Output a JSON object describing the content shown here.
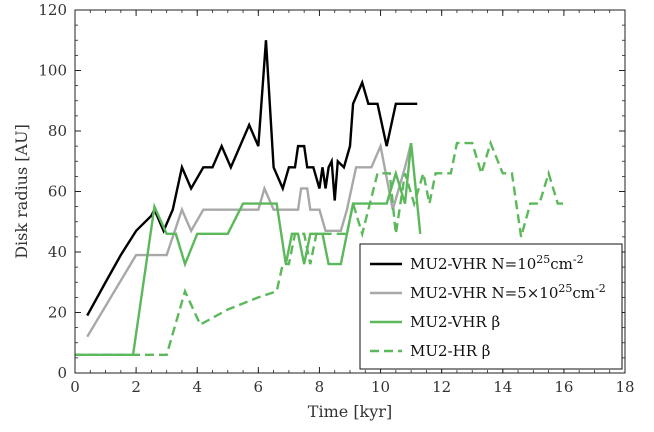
{
  "chart_data": {
    "type": "line",
    "title": "",
    "xlabel": "Time [kyr]",
    "ylabel": "Disk radius [AU]",
    "xlim": [
      0,
      18
    ],
    "ylim": [
      0,
      120
    ],
    "xticks": [
      0,
      2,
      4,
      6,
      8,
      10,
      12,
      14,
      16,
      18
    ],
    "yticks": [
      0,
      20,
      40,
      60,
      80,
      100,
      120
    ],
    "minor_xtick_step": 0.5,
    "minor_ytick_step": 5,
    "grid": false,
    "legend_position": "lower-right",
    "series": [
      {
        "name_parts": [
          "MU2-VHR N=10",
          "25",
          "cm",
          "-2"
        ],
        "color": "#000000",
        "dash": "solid",
        "points": [
          [
            0.4,
            19
          ],
          [
            1.0,
            30
          ],
          [
            1.5,
            39
          ],
          [
            2.0,
            47
          ],
          [
            2.5,
            52
          ],
          [
            2.6,
            54
          ],
          [
            2.9,
            47
          ],
          [
            3.2,
            54
          ],
          [
            3.5,
            68
          ],
          [
            3.8,
            61
          ],
          [
            4.2,
            68
          ],
          [
            4.5,
            68
          ],
          [
            4.8,
            75
          ],
          [
            5.1,
            68
          ],
          [
            5.7,
            82
          ],
          [
            6.0,
            75
          ],
          [
            6.25,
            110
          ],
          [
            6.5,
            68
          ],
          [
            6.8,
            61
          ],
          [
            7.0,
            68
          ],
          [
            7.2,
            68
          ],
          [
            7.3,
            75
          ],
          [
            7.5,
            75
          ],
          [
            7.6,
            68
          ],
          [
            7.8,
            68
          ],
          [
            8.0,
            61
          ],
          [
            8.1,
            68
          ],
          [
            8.2,
            61
          ],
          [
            8.3,
            68
          ],
          [
            8.4,
            70
          ],
          [
            8.5,
            57
          ],
          [
            8.6,
            70
          ],
          [
            8.8,
            68
          ],
          [
            9.0,
            75
          ],
          [
            9.1,
            89
          ],
          [
            9.4,
            96
          ],
          [
            9.6,
            89
          ],
          [
            9.9,
            89
          ],
          [
            10.2,
            75
          ],
          [
            10.5,
            89
          ],
          [
            11.2,
            89
          ]
        ]
      },
      {
        "name_parts": [
          "MU2-VHR N=5×10",
          "25",
          "cm",
          "-2"
        ],
        "color": "#a8a8a8",
        "dash": "solid",
        "points": [
          [
            0.4,
            12
          ],
          [
            2.0,
            39
          ],
          [
            3.0,
            39
          ],
          [
            3.5,
            54
          ],
          [
            3.8,
            47
          ],
          [
            4.2,
            54
          ],
          [
            5.5,
            54
          ],
          [
            6.0,
            54
          ],
          [
            6.2,
            61
          ],
          [
            6.5,
            54
          ],
          [
            7.0,
            54
          ],
          [
            7.3,
            54
          ],
          [
            7.4,
            61
          ],
          [
            7.6,
            61
          ],
          [
            7.7,
            54
          ],
          [
            8.0,
            54
          ],
          [
            8.2,
            47
          ],
          [
            8.7,
            47
          ],
          [
            8.9,
            54
          ],
          [
            9.2,
            68
          ],
          [
            9.7,
            68
          ],
          [
            10.0,
            75
          ],
          [
            10.4,
            54
          ],
          [
            10.8,
            68
          ],
          [
            11.0,
            76
          ]
        ]
      },
      {
        "name_parts": [
          "MU2-VHR β"
        ],
        "color": "#5bb85b",
        "dash": "solid",
        "points": [
          [
            0,
            6
          ],
          [
            1.9,
            6
          ],
          [
            2.6,
            55
          ],
          [
            3.0,
            46
          ],
          [
            3.3,
            46
          ],
          [
            3.6,
            36
          ],
          [
            4.0,
            46
          ],
          [
            5.0,
            46
          ],
          [
            5.5,
            56
          ],
          [
            6.6,
            56
          ],
          [
            6.9,
            36
          ],
          [
            7.1,
            46
          ],
          [
            7.3,
            46
          ],
          [
            7.5,
            36
          ],
          [
            7.7,
            46
          ],
          [
            8.1,
            46
          ],
          [
            8.3,
            36
          ],
          [
            8.7,
            36
          ],
          [
            9.1,
            56
          ],
          [
            10.0,
            56
          ],
          [
            10.2,
            56
          ],
          [
            10.5,
            66
          ],
          [
            10.8,
            56
          ],
          [
            11.0,
            76
          ],
          [
            11.3,
            46
          ]
        ]
      },
      {
        "name_parts": [
          "MU2-HR β"
        ],
        "color": "#5bb85b",
        "dash": "dashed",
        "points": [
          [
            0,
            6
          ],
          [
            3.0,
            6
          ],
          [
            3.6,
            27
          ],
          [
            4.1,
            16
          ],
          [
            5.0,
            21
          ],
          [
            6.0,
            25
          ],
          [
            6.6,
            27
          ],
          [
            6.8,
            36
          ],
          [
            7.0,
            36
          ],
          [
            7.2,
            46
          ],
          [
            7.5,
            46
          ],
          [
            7.7,
            36
          ],
          [
            7.9,
            46
          ],
          [
            8.6,
            46
          ],
          [
            8.8,
            46
          ],
          [
            8.9,
            46
          ],
          [
            9.1,
            56
          ],
          [
            9.4,
            46
          ],
          [
            9.9,
            66
          ],
          [
            10.3,
            66
          ],
          [
            10.5,
            46
          ],
          [
            10.8,
            66
          ],
          [
            11.1,
            56
          ],
          [
            11.4,
            66
          ],
          [
            11.6,
            56
          ],
          [
            11.8,
            66
          ],
          [
            12.0,
            66
          ],
          [
            12.3,
            66
          ],
          [
            12.5,
            76
          ],
          [
            13.0,
            76
          ],
          [
            13.3,
            66
          ],
          [
            13.6,
            76
          ],
          [
            14.0,
            66
          ],
          [
            14.3,
            66
          ],
          [
            14.6,
            45
          ],
          [
            14.9,
            56
          ],
          [
            15.2,
            56
          ],
          [
            15.5,
            66
          ],
          [
            15.8,
            56
          ],
          [
            16.0,
            56
          ]
        ]
      }
    ]
  }
}
